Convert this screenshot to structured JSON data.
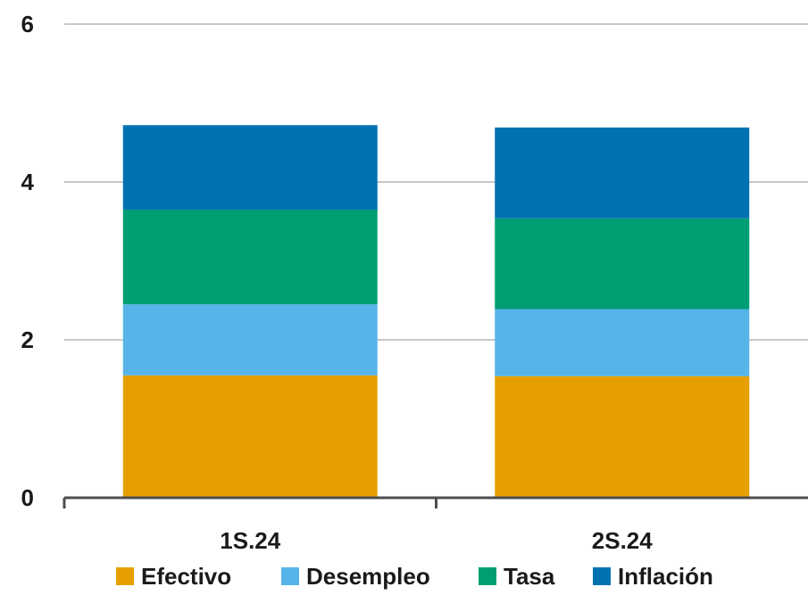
{
  "chart_data": {
    "type": "bar",
    "stacked": true,
    "categories": [
      "1S.24",
      "2S.24"
    ],
    "series": [
      {
        "name": "Efectivo",
        "color": "#E5A000",
        "values": [
          1.55,
          1.54
        ]
      },
      {
        "name": "Desempleo",
        "color": "#56B4E9",
        "values": [
          0.9,
          0.85
        ]
      },
      {
        "name": "Tasa",
        "color": "#009E73",
        "values": [
          1.2,
          1.15
        ]
      },
      {
        "name": "Inflación",
        "color": "#0072B2",
        "values": [
          1.07,
          1.15
        ]
      }
    ],
    "y_ticks": [
      "0",
      "2",
      "4",
      "6"
    ],
    "ylim": [
      0,
      6
    ],
    "grid": true,
    "legend_position": "bottom"
  }
}
